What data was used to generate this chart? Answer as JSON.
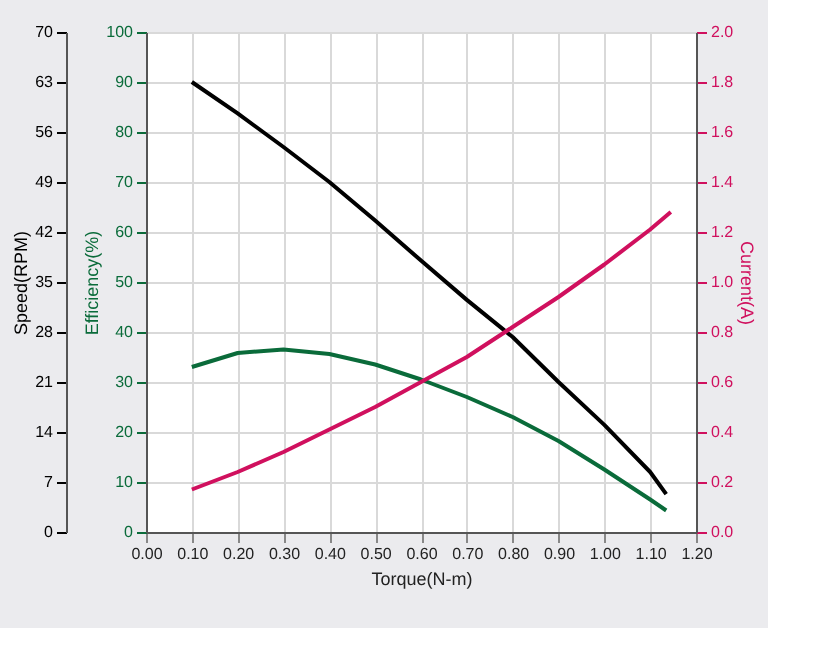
{
  "chart_data": {
    "type": "line",
    "xlabel": "Torque(N-m)",
    "ylabel": "Speed(RPM)",
    "y2label": "Current(A)",
    "y3label": "Efficiency(%)",
    "xlim": [
      0,
      1.2
    ],
    "xticks": [
      {
        "value": 0,
        "label": "0.00"
      },
      {
        "value": 0.1,
        "label": "0.10"
      },
      {
        "value": 0.2,
        "label": "0.20"
      },
      {
        "value": 0.3,
        "label": "0.30"
      },
      {
        "value": 0.4,
        "label": "0.40"
      },
      {
        "value": 0.5,
        "label": "0.50"
      },
      {
        "value": 0.6,
        "label": "0.60"
      },
      {
        "value": 0.7,
        "label": "0.70"
      },
      {
        "value": 0.8,
        "label": "0.80"
      },
      {
        "value": 0.9,
        "label": "0.90"
      },
      {
        "value": 1.0,
        "label": "1.00"
      },
      {
        "value": 1.1,
        "label": "1.10"
      },
      {
        "value": 1.2,
        "label": "1.20"
      }
    ],
    "ylim": [
      0,
      70
    ],
    "yticks": [
      0,
      7,
      14,
      21,
      28,
      35,
      42,
      49,
      56,
      63,
      70
    ],
    "y3lim": [
      0,
      100
    ],
    "y3ticks": [
      0,
      10,
      20,
      30,
      40,
      50,
      60,
      70,
      80,
      90,
      100
    ],
    "y2lim": [
      0,
      2
    ],
    "y2ticks": [
      {
        "value": 0,
        "label": "0.0"
      },
      0.2,
      0.4,
      0.6,
      0.8,
      {
        "value": 1,
        "label": "1.0"
      },
      1.2,
      1.4,
      1.6,
      1.8,
      {
        "value": 2,
        "label": "2.0"
      }
    ],
    "grid": true,
    "line_style": "solid",
    "marker": "none",
    "series": [
      {
        "color": "#000000",
        "axis": "y",
        "x": [
          0.1,
          0.2,
          0.3,
          0.4,
          0.5,
          0.6,
          0.7,
          0.8,
          0.9,
          1.0,
          1.1,
          1.135
        ],
        "values": [
          63,
          58.6,
          53.9,
          49,
          43.6,
          38,
          32.5,
          27.3,
          21,
          15,
          8.4,
          5.3
        ]
      },
      {
        "color": "#0a6b3a",
        "axis": "y3",
        "x": [
          0.1,
          0.2,
          0.3,
          0.4,
          0.5,
          0.6,
          0.7,
          0.8,
          0.9,
          1.0,
          1.1,
          1.135
        ],
        "values": [
          33,
          35.8,
          36.5,
          35.6,
          33.5,
          30.5,
          27,
          23,
          18.2,
          12.5,
          6.5,
          4.3
        ]
      },
      {
        "color": "#d0105e",
        "axis": "y2",
        "x": [
          0.1,
          0.2,
          0.3,
          0.4,
          0.5,
          0.6,
          0.7,
          0.8,
          0.9,
          1.0,
          1.1,
          1.145
        ],
        "values": [
          0.17,
          0.24,
          0.32,
          0.41,
          0.5,
          0.6,
          0.7,
          0.82,
          0.94,
          1.07,
          1.21,
          1.28
        ]
      }
    ]
  }
}
